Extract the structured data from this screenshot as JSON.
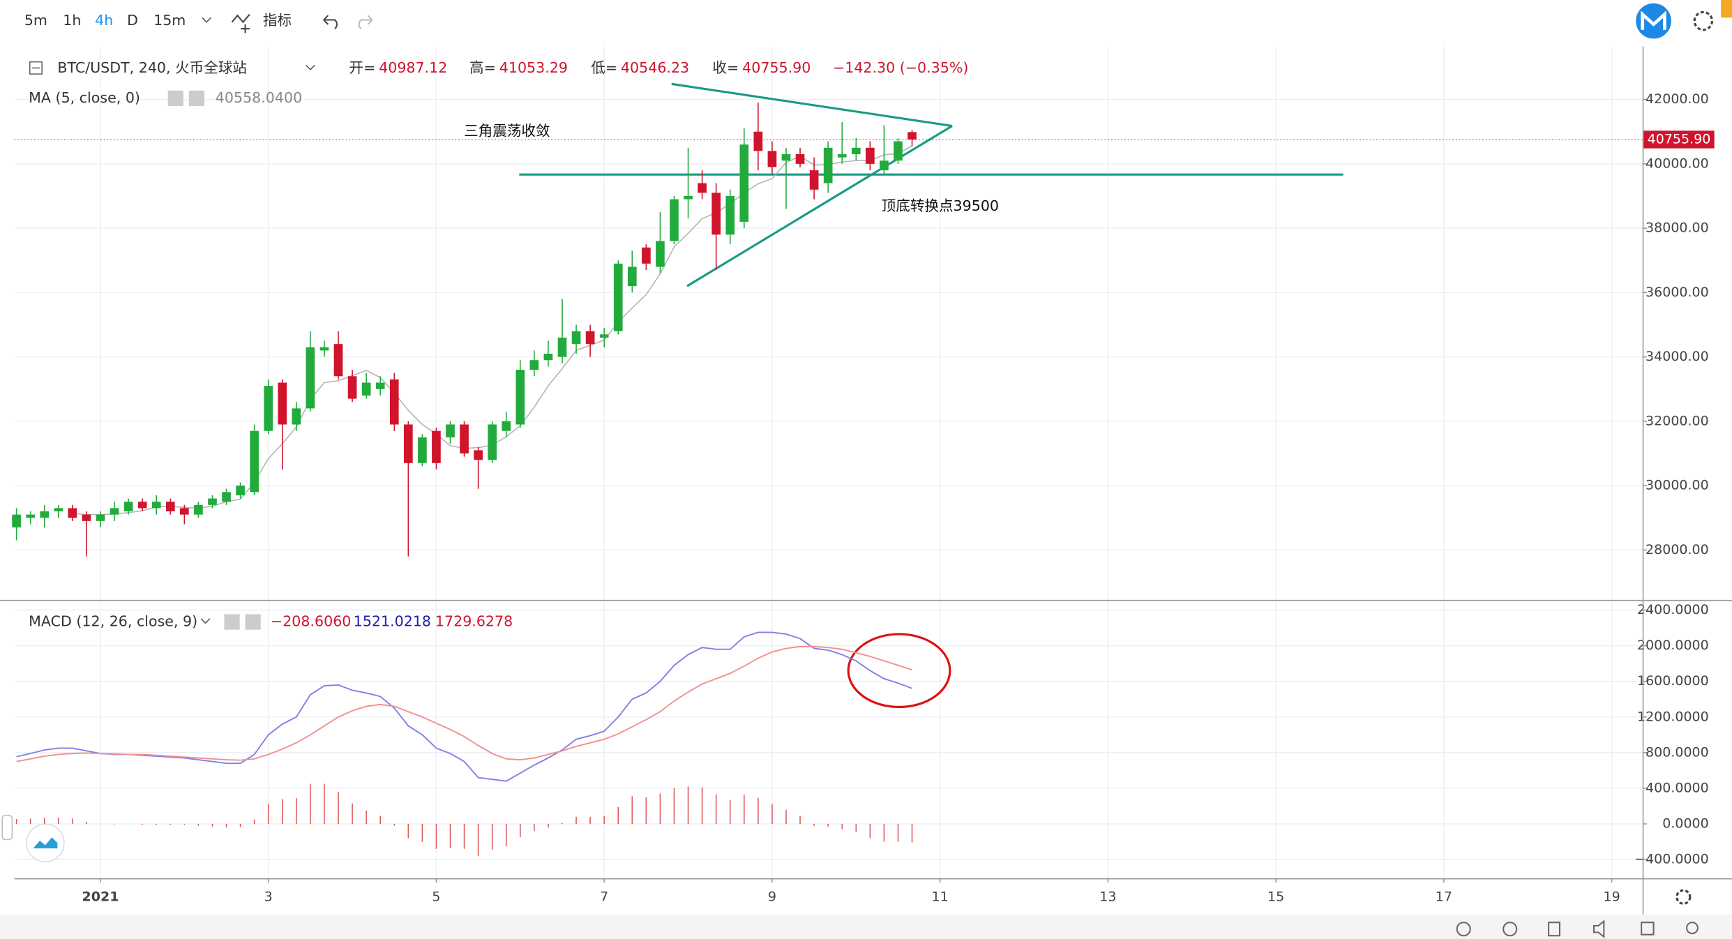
{
  "toolbar": {
    "intervals": [
      "5m",
      "1h",
      "4h",
      "D",
      "15m"
    ],
    "indicators": "指标"
  },
  "chart_data": [
    {
      "type": "candlestick",
      "symbol": "BTC/USDT, 240, 火币全球站",
      "ohlc_legend": [
        [
          "开=",
          "40987.12"
        ],
        [
          "高=",
          "41053.29"
        ],
        [
          "低=",
          "40546.23"
        ],
        [
          "收=",
          "40755.90"
        ]
      ],
      "change": "−142.30 (−0.35%)",
      "indicator": {
        "name": "MA (5, close, 0)",
        "value": "40558.0400",
        "color": "#b4b4b4",
        "values": [
          null,
          null,
          null,
          null,
          29140,
          29100,
          29100,
          29120,
          29160,
          29220,
          29340,
          29360,
          29320,
          29300,
          29360,
          29500,
          29580,
          30100,
          30840,
          31300,
          31820,
          32680,
          33200,
          33260,
          33420,
          33580,
          33360,
          32880,
          32340,
          31900,
          31600,
          31240,
          31160,
          31180,
          31260,
          31520,
          31860,
          32440,
          33100,
          33640,
          34200,
          34360,
          34520,
          35080,
          35520,
          35940,
          36580,
          37420,
          37840,
          38300,
          38480,
          38760,
          39100,
          39380,
          39540,
          40040,
          40240,
          39960,
          39980,
          40060,
          40100,
          40100,
          40280,
          40320,
          40558.04
        ]
      },
      "annotations": [
        "三角震荡收敛",
        "顶底转换点39500"
      ],
      "last_price_label": "40755.90",
      "up_color": "#22ab3c",
      "down_color": "#d0142c",
      "grid": true,
      "x": [
        -24,
        -20,
        -16,
        -12,
        -8,
        -4,
        0,
        4,
        8,
        12,
        16,
        20,
        24,
        28,
        32,
        36,
        40,
        44,
        48,
        52,
        56,
        60,
        64,
        68,
        72,
        76,
        80,
        84,
        88,
        92,
        96,
        100,
        104,
        108,
        112,
        116,
        120,
        124,
        128,
        132,
        136,
        140,
        144,
        148,
        152,
        156,
        160,
        164,
        168,
        172,
        176,
        180,
        184,
        188,
        192,
        196,
        200,
        204,
        208,
        212,
        216,
        220,
        224,
        228,
        232
      ],
      "open": [
        28700,
        29000,
        29000,
        29200,
        29300,
        29100,
        28900,
        29100,
        29200,
        29500,
        29300,
        29500,
        29300,
        29100,
        29400,
        29500,
        29700,
        29800,
        31700,
        33200,
        31900,
        32400,
        34200,
        34400,
        33400,
        32800,
        33000,
        33300,
        31900,
        30700,
        31700,
        31500,
        31900,
        31100,
        30800,
        31700,
        31900,
        33600,
        33900,
        34000,
        34400,
        34800,
        34600,
        34800,
        36200,
        37400,
        36800,
        37600,
        38900,
        39400,
        39100,
        37800,
        38200,
        41000,
        40400,
        40100,
        40300,
        39800,
        39400,
        40200,
        40300,
        40500,
        39800,
        40100,
        40987.12
      ],
      "high": [
        29300,
        29200,
        29400,
        29400,
        29400,
        29200,
        29200,
        29500,
        29600,
        29600,
        29700,
        29600,
        29400,
        29500,
        29700,
        29900,
        30100,
        31900,
        33300,
        33300,
        32600,
        34800,
        34500,
        34800,
        33600,
        33500,
        33400,
        33500,
        32000,
        31600,
        31800,
        32000,
        32000,
        31200,
        32000,
        32300,
        33900,
        34200,
        34500,
        35800,
        35000,
        35000,
        34900,
        37000,
        37300,
        37500,
        38500,
        39000,
        40500,
        39800,
        39400,
        39200,
        41100,
        41900,
        40700,
        40500,
        40500,
        40200,
        40700,
        41300,
        40800,
        40700,
        41200,
        40800,
        41053.29
      ],
      "low": [
        28300,
        28800,
        28700,
        29000,
        28900,
        27800,
        28700,
        28900,
        29100,
        29200,
        29100,
        29100,
        28800,
        29000,
        29300,
        29400,
        29600,
        29700,
        31600,
        30500,
        31700,
        32300,
        34000,
        33300,
        32600,
        32700,
        32800,
        31700,
        27800,
        30600,
        30500,
        31300,
        30900,
        29900,
        30700,
        31500,
        31800,
        33400,
        33700,
        33800,
        34100,
        34000,
        34300,
        34700,
        36000,
        36700,
        36600,
        37500,
        38300,
        38900,
        36700,
        37500,
        38000,
        39800,
        39700,
        38600,
        39900,
        38900,
        39100,
        40000,
        40100,
        39800,
        39700,
        40000,
        40546.23
      ],
      "close": [
        29100,
        29100,
        29200,
        29300,
        29000,
        28900,
        29100,
        29300,
        29500,
        29300,
        29500,
        29200,
        29100,
        29400,
        29600,
        29800,
        30000,
        31700,
        33100,
        31900,
        32400,
        34300,
        34300,
        33400,
        32700,
        33200,
        33200,
        31900,
        30700,
        31500,
        30700,
        31900,
        31000,
        30800,
        31900,
        32000,
        33600,
        33900,
        34100,
        34600,
        34800,
        34400,
        34700,
        36900,
        36800,
        36900,
        37600,
        38900,
        39000,
        39100,
        37800,
        39000,
        40600,
        40400,
        39900,
        40300,
        40000,
        39200,
        40500,
        40300,
        40500,
        40000,
        40100,
        40700,
        40755.9
      ],
      "xlim": [
        -24.6,
        440.8
      ],
      "xticks": [
        {
          "value": 0,
          "label": "2021"
        },
        {
          "value": 48,
          "label": "3"
        },
        {
          "value": 96,
          "label": "5"
        },
        {
          "value": 144,
          "label": "7"
        },
        {
          "value": 192,
          "label": "9"
        },
        {
          "value": 240,
          "label": "11"
        },
        {
          "value": 288,
          "label": "13"
        },
        {
          "value": 336,
          "label": "15"
        },
        {
          "value": 384,
          "label": "17"
        },
        {
          "value": 432,
          "label": "19"
        }
      ],
      "ylim": [
        26450,
        43650
      ],
      "yticks": [
        {
          "value": 28000,
          "label": "28000.00"
        },
        {
          "value": 30000,
          "label": "30000.00"
        },
        {
          "value": 32000,
          "label": "32000.00"
        },
        {
          "value": 34000,
          "label": "34000.00"
        },
        {
          "value": 36000,
          "label": "36000.00"
        },
        {
          "value": 38000,
          "label": "38000.00"
        },
        {
          "value": 40000,
          "label": "40000.00"
        },
        {
          "value": 42000,
          "label": "42000.00"
        }
      ]
    },
    {
      "type": "macd",
      "title": "MACD (12, 26, close, 9)",
      "x": [
        -24,
        -20,
        -16,
        -12,
        -8,
        -4,
        0,
        4,
        8,
        12,
        16,
        20,
        24,
        28,
        32,
        36,
        40,
        44,
        48,
        52,
        56,
        60,
        64,
        68,
        72,
        76,
        80,
        84,
        88,
        92,
        96,
        100,
        104,
        108,
        112,
        116,
        120,
        124,
        128,
        132,
        136,
        140,
        144,
        148,
        152,
        156,
        160,
        164,
        168,
        172,
        176,
        180,
        184,
        188,
        192,
        196,
        200,
        204,
        208,
        212,
        216,
        220,
        224,
        228,
        232
      ],
      "histogram": {
        "color": "#e05a5a",
        "legend_value": "−208.6060",
        "values": [
          55,
          60,
          70,
          70,
          60,
          25,
          0,
          -5,
          0,
          -10,
          -10,
          -10,
          -10,
          -20,
          -30,
          -40,
          -35,
          50,
          220,
          280,
          290,
          450,
          450,
          360,
          230,
          150,
          90,
          -20,
          -160,
          -200,
          -280,
          -270,
          -280,
          -360,
          -290,
          -250,
          -150,
          -80,
          -40,
          10,
          80,
          80,
          90,
          190,
          310,
          300,
          340,
          400,
          420,
          410,
          330,
          270,
          330,
          290,
          220,
          160,
          90,
          -20,
          -30,
          -60,
          -90,
          -160,
          -200,
          -200,
          -208.606
        ]
      },
      "series": [
        {
          "color": "#8080e6",
          "legend_value": "1521.0218",
          "legend_color": "#2020b0",
          "values": [
            755,
            790,
            830,
            850,
            850,
            820,
            790,
            780,
            780,
            770,
            760,
            750,
            740,
            720,
            700,
            680,
            680,
            780,
            1000,
            1120,
            1200,
            1450,
            1550,
            1560,
            1500,
            1470,
            1430,
            1300,
            1100,
            1000,
            850,
            790,
            700,
            520,
            500,
            480,
            570,
            660,
            740,
            830,
            950,
            990,
            1040,
            1200,
            1400,
            1470,
            1600,
            1780,
            1900,
            1980,
            1960,
            1960,
            2100,
            2150,
            2150,
            2130,
            2080,
            1970,
            1950,
            1900,
            1830,
            1720,
            1630,
            1580,
            1521.0218
          ]
        },
        {
          "color": "#f29090",
          "legend_value": "1729.6278",
          "legend_color": "#d0142c",
          "values": [
            700,
            730,
            760,
            780,
            790,
            795,
            790,
            785,
            780,
            780,
            770,
            760,
            750,
            740,
            730,
            720,
            715,
            730,
            780,
            840,
            910,
            1000,
            1100,
            1200,
            1270,
            1320,
            1340,
            1320,
            1260,
            1200,
            1130,
            1060,
            980,
            880,
            790,
            730,
            720,
            740,
            780,
            820,
            870,
            910,
            950,
            1010,
            1090,
            1170,
            1260,
            1380,
            1480,
            1570,
            1630,
            1690,
            1770,
            1860,
            1930,
            1970,
            1990,
            1990,
            1980,
            1960,
            1920,
            1880,
            1830,
            1780,
            1729.6278
          ]
        }
      ],
      "xlim": [
        -24.6,
        440.8
      ],
      "ylim": [
        -610,
        2490
      ],
      "yticks": [
        {
          "value": -400,
          "label": "−400.0000"
        },
        {
          "value": 0,
          "label": "0.0000"
        },
        {
          "value": 400,
          "label": "400.0000"
        },
        {
          "value": 800,
          "label": "800.0000"
        },
        {
          "value": 1200,
          "label": "1200.0000"
        },
        {
          "value": 1600,
          "label": "1600.0000"
        },
        {
          "value": 2000,
          "label": "2000.0000"
        },
        {
          "value": 2400,
          "label": "2400.0000"
        }
      ],
      "grid": true
    }
  ]
}
